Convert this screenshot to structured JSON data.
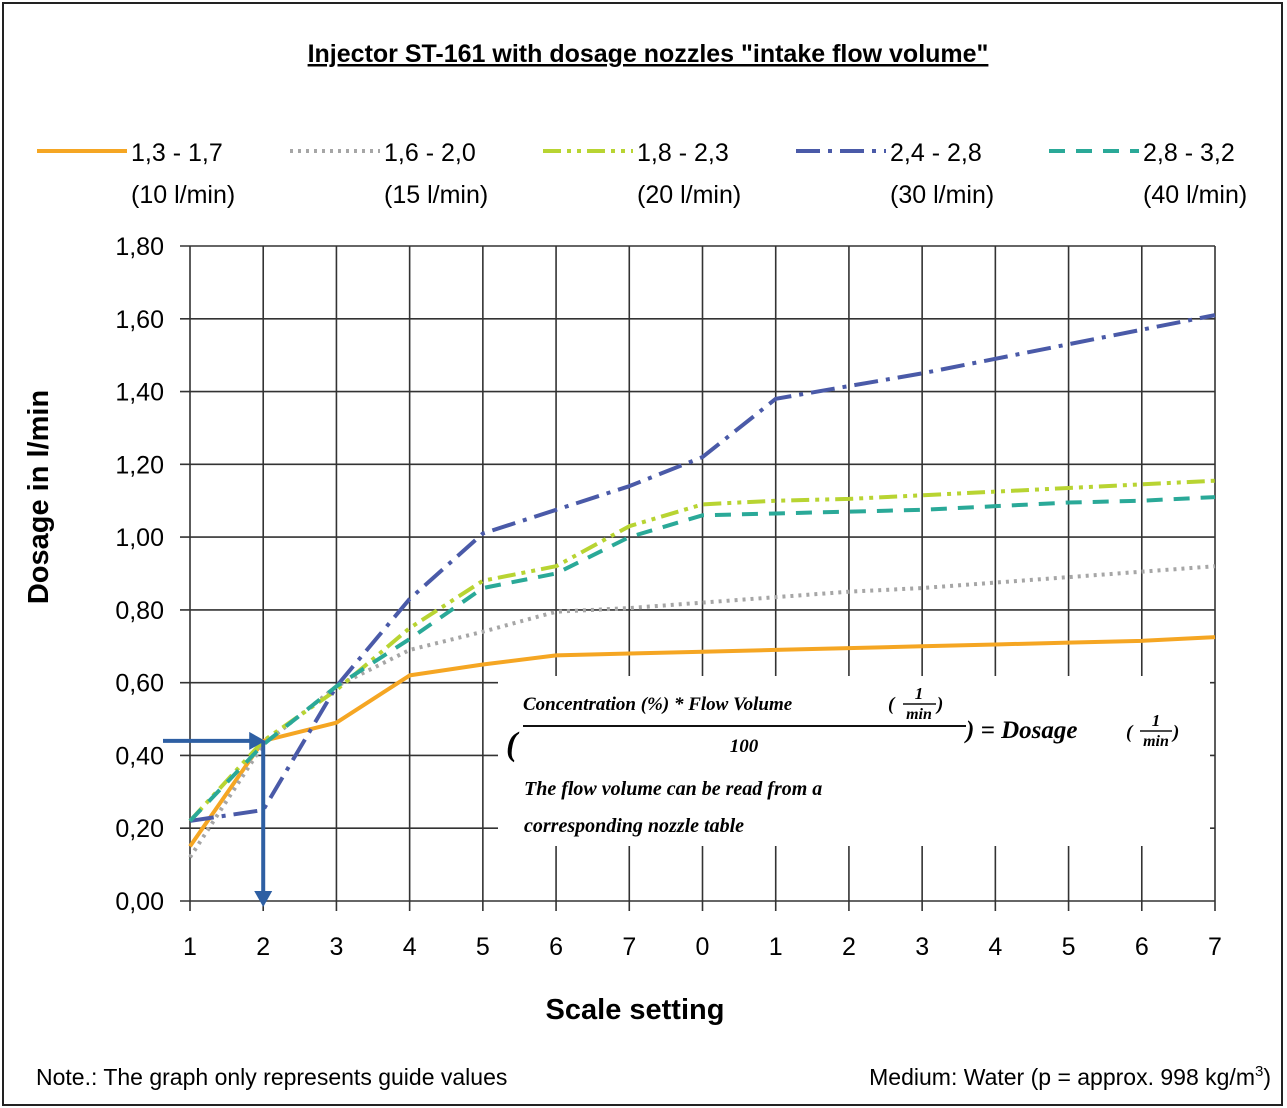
{
  "chart_data": {
    "type": "line",
    "title": "Injector ST-161 with dosage nozzles \"intake flow volume\"",
    "xlabel": "Scale setting",
    "ylabel": "Dosage in l/min",
    "categories": [
      "1",
      "2",
      "3",
      "4",
      "5",
      "6",
      "7",
      "0",
      "1",
      "2",
      "3",
      "4",
      "5",
      "6",
      "7"
    ],
    "ylim": [
      0,
      1.8
    ],
    "yticks": [
      "0,00",
      "0,20",
      "0,40",
      "0,60",
      "0,80",
      "1,00",
      "1,20",
      "1,40",
      "1,60",
      "1,80"
    ],
    "grid": true,
    "legend_position": "top",
    "series": [
      {
        "name": "1,3 - 1,7",
        "sub": "(10 l/min)",
        "color": "#f5a623",
        "dash": "solid",
        "values": [
          0.15,
          0.44,
          0.49,
          0.62,
          0.65,
          0.675,
          0.68,
          0.685,
          0.69,
          0.695,
          0.7,
          0.705,
          0.71,
          0.715,
          0.725
        ]
      },
      {
        "name": "1,6 - 2,0",
        "sub": "(15 l/min)",
        "color": "#a6a6a6",
        "dash": "dot",
        "values": [
          0.12,
          0.43,
          0.59,
          0.69,
          0.74,
          0.795,
          0.805,
          0.82,
          0.835,
          0.85,
          0.86,
          0.875,
          0.89,
          0.905,
          0.92
        ]
      },
      {
        "name": "1,8 - 2,3",
        "sub": "(20 l/min)",
        "color": "#b8d432",
        "dash": "dashdotdot",
        "values": [
          0.22,
          0.44,
          0.58,
          0.75,
          0.88,
          0.92,
          1.03,
          1.09,
          1.1,
          1.105,
          1.115,
          1.125,
          1.135,
          1.145,
          1.155
        ]
      },
      {
        "name": "2,4 - 2,8",
        "sub": "(30 l/min)",
        "color": "#4a5aa8",
        "dash": "dashdot",
        "values": [
          0.22,
          0.25,
          0.59,
          0.83,
          1.01,
          1.075,
          1.14,
          1.22,
          1.38,
          1.415,
          1.45,
          1.49,
          1.53,
          1.57,
          1.61
        ]
      },
      {
        "name": "2,8 - 3,2",
        "sub": "(40 l/min)",
        "color": "#2aa998",
        "dash": "dash",
        "values": [
          0.22,
          0.43,
          0.59,
          0.72,
          0.86,
          0.9,
          1.0,
          1.06,
          1.065,
          1.07,
          1.075,
          1.085,
          1.095,
          1.1,
          1.11
        ]
      }
    ],
    "reading_example": {
      "x_category_index": 1,
      "y_value": 0.44,
      "color": "#2e5fa3"
    }
  },
  "formula": {
    "open_paren": "(",
    "numerator": "Concentration (%) * Flow Volume",
    "unit_numerator": "1",
    "unit_denominator": "min",
    "denominator": "100",
    "close_and_equals": ") = Dosage",
    "note_line1": "The flow volume can be read from a",
    "note_line2": "corresponding nozzle table"
  },
  "footer": {
    "note": "Note.: The graph only represents guide values",
    "medium": "Medium: Water (p = approx. 998 kg/m",
    "medium_sup": "3",
    "medium_close": ")"
  }
}
